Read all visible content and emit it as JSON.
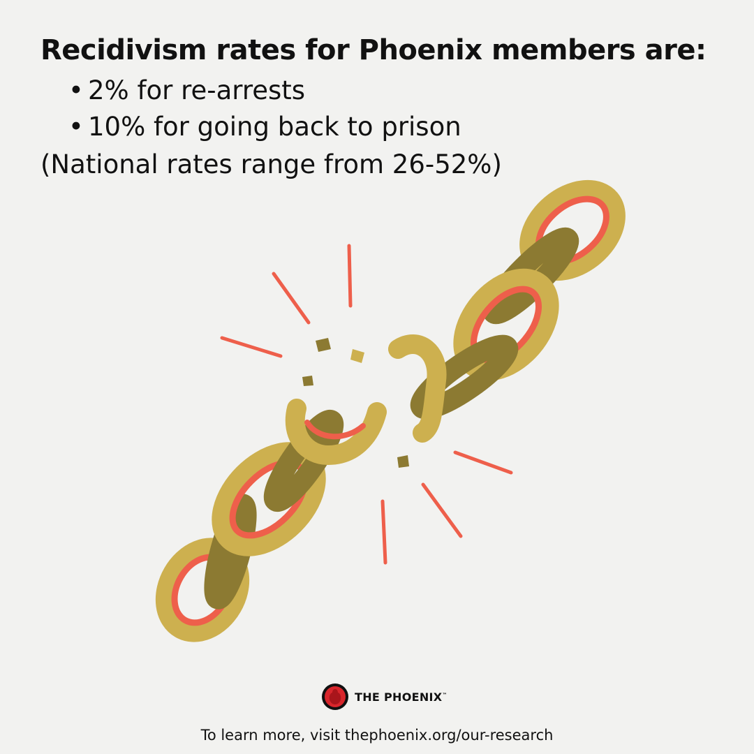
{
  "headline": "Recidivism rates for Phoenix members are:",
  "stats": [
    {
      "bullet": "•",
      "text": "2% for re-arrests"
    },
    {
      "bullet": "•",
      "text": "10% for going back to prison"
    }
  ],
  "note": "(National rates range from 26-52%)",
  "illustration": {
    "icon": "broken-chain",
    "colors": {
      "gold": "#cdb04f",
      "dark_gold": "#8c7a32",
      "accent": "#ee5f4b"
    }
  },
  "logo": {
    "name": "THE PHOENIX",
    "trademark": "™",
    "icon": "phoenix-bird-icon",
    "color": "#d8262c"
  },
  "footer": "To learn more, visit thephoenix.org/our-research",
  "colors": {
    "background": "#f2f2f0",
    "text": "#111111"
  }
}
